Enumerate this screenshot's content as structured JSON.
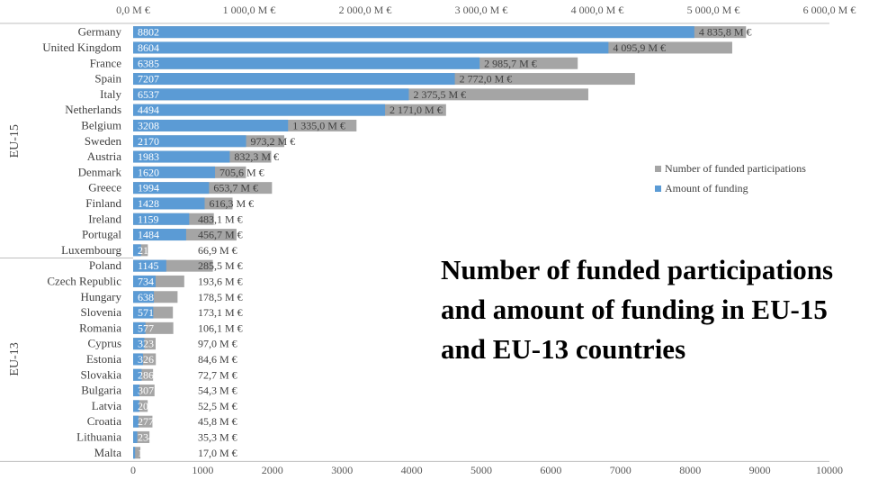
{
  "chart_data": {
    "type": "bar",
    "orientation": "horizontal",
    "title": "Number of  funded participations and amount of funding in EU-15 and EU-13 countries",
    "groups": [
      {
        "name": "EU-15",
        "count": 15
      },
      {
        "name": "EU-13",
        "count": 13
      }
    ],
    "categories": [
      "Germany",
      "United Kingdom",
      "France",
      "Spain",
      "Italy",
      "Netherlands",
      "Belgium",
      "Sweden",
      "Austria",
      "Denmark",
      "Greece",
      "Finland",
      "Ireland",
      "Portugal",
      "Luxembourg",
      "Poland",
      "Czech Republic",
      "Hungary",
      "Slovenia",
      "Romania",
      "Cyprus",
      "Estonia",
      "Slovakia",
      "Bulgaria",
      "Latvia",
      "Croatia",
      "Lithuania",
      "Malta"
    ],
    "series": [
      {
        "name": "Number of funded participations",
        "color": "#a5a5a5",
        "axis": "bottom",
        "values": [
          8802,
          8604,
          6385,
          7207,
          6537,
          4494,
          3208,
          2170,
          1983,
          1620,
          1994,
          1428,
          1159,
          1484,
          211,
          1145,
          734,
          638,
          571,
          577,
          323,
          326,
          286,
          307,
          209,
          277,
          234,
          104
        ]
      },
      {
        "name": "Amount of funding",
        "color": "#5b9bd5",
        "axis": "top",
        "values": [
          4835.8,
          4095.9,
          2985.7,
          2772.0,
          2375.5,
          2171.0,
          1335.0,
          973.2,
          832.3,
          705.6,
          653.7,
          616.3,
          483.1,
          456.7,
          66.9,
          285.5,
          193.6,
          178.5,
          173.1,
          106.1,
          97.0,
          84.6,
          72.7,
          54.3,
          52.5,
          45.8,
          35.3,
          17.0
        ],
        "value_labels": [
          "4 835,8 M €",
          "4 095,9 M €",
          "2 985,7 M €",
          "2 772,0 M €",
          "2 375,5 M €",
          "2 171,0 M €",
          "1 335,0 M €",
          "973,2 M €",
          "832,3 M €",
          "705,6 M €",
          "653,7 M €",
          "616,3 M €",
          "483,1 M €",
          "456,7 M €",
          "66,9 M €",
          "285,5 M €",
          "193,6 M €",
          "178,5 M €",
          "173,1 M €",
          "106,1 M €",
          "97,0 M €",
          "84,6 M €",
          "72,7 M €",
          "54,3 M €",
          "52,5 M €",
          "45,8 M €",
          "35,3 M €",
          "17,0 M €"
        ]
      }
    ],
    "x_bottom": {
      "range": [
        0,
        10000
      ],
      "ticks": [
        "0",
        "1000",
        "2000",
        "3000",
        "4000",
        "5000",
        "6000",
        "7000",
        "8000",
        "9000",
        "10000"
      ]
    },
    "x_top": {
      "range": [
        0,
        6000
      ],
      "ticks": [
        "0,0 M €",
        "1 000,0 M €",
        "2 000,0 M €",
        "3 000,0 M €",
        "4 000,0 M €",
        "5 000,0 M €",
        "6 000,0 M €"
      ]
    },
    "grid": false,
    "legend_position": "right"
  }
}
